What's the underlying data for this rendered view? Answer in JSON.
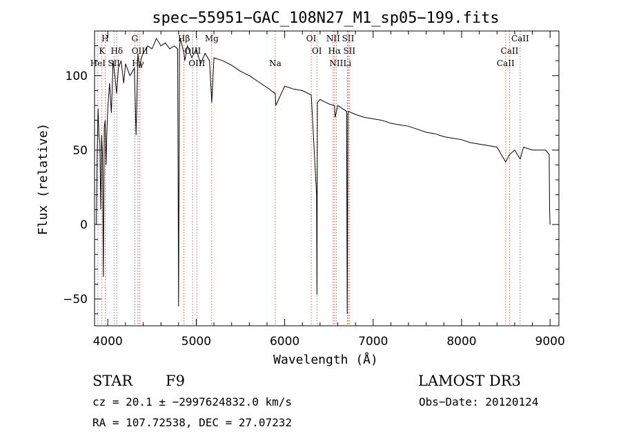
{
  "chart_data": {
    "type": "line",
    "title": "spec−55951−GAC_108N27_M1_sp05−199.fits",
    "xlabel": "Wavelength (Å)",
    "ylabel": "Flux (relative)",
    "xlim": [
      3850,
      9100
    ],
    "ylim": [
      -68,
      130
    ],
    "xticks": [
      4000,
      5000,
      6000,
      7000,
      8000,
      9000
    ],
    "yticks": [
      -50,
      0,
      50,
      100
    ],
    "ytick_labels": [
      "−50",
      "0",
      "50",
      "100"
    ],
    "series": [
      {
        "name": "flux",
        "x": [
          3870,
          3880,
          3890,
          3900,
          3910,
          3920,
          3930,
          3940,
          3950,
          3960,
          3970,
          3980,
          3990,
          4000,
          4020,
          4040,
          4060,
          4080,
          4100,
          4120,
          4150,
          4180,
          4200,
          4250,
          4300,
          4320,
          4340,
          4360,
          4380,
          4400,
          4450,
          4500,
          4550,
          4600,
          4650,
          4700,
          4750,
          4790,
          4800,
          4810,
          4820,
          4861,
          4870,
          4900,
          4950,
          5000,
          5050,
          5100,
          5150,
          5175,
          5200,
          5300,
          5400,
          5500,
          5600,
          5700,
          5800,
          5893,
          5900,
          6000,
          6100,
          6200,
          6300,
          6360,
          6365,
          6370,
          6400,
          6500,
          6563,
          6570,
          6600,
          6650,
          6700,
          6707,
          6715,
          6720,
          6800,
          6900,
          7000,
          7100,
          7200,
          7300,
          7400,
          7500,
          7600,
          7700,
          7800,
          7900,
          8000,
          8100,
          8200,
          8300,
          8400,
          8498,
          8542,
          8600,
          8662,
          8700,
          8800,
          8900,
          8950,
          8990,
          8995,
          9000
        ],
        "y": [
          0,
          45,
          78,
          60,
          55,
          10,
          60,
          48,
          -35,
          65,
          70,
          40,
          62,
          78,
          95,
          75,
          110,
          100,
          88,
          105,
          110,
          95,
          108,
          100,
          105,
          60,
          115,
          105,
          112,
          115,
          120,
          118,
          125,
          120,
          122,
          118,
          120,
          118,
          -55,
          118,
          125,
          115,
          110,
          120,
          112,
          118,
          108,
          115,
          110,
          82,
          112,
          110,
          107,
          103,
          100,
          96,
          92,
          88,
          80,
          93,
          91,
          90,
          87,
          20,
          -47,
          82,
          84,
          81,
          80,
          72,
          80,
          78,
          76,
          -60,
          74,
          76,
          74,
          72,
          71,
          70,
          68,
          67,
          66,
          64,
          62,
          61,
          59,
          58,
          57,
          55,
          54,
          53,
          52,
          42,
          47,
          50,
          44,
          52,
          50,
          50,
          50,
          47,
          10,
          0
        ]
      }
    ],
    "lines": [
      {
        "label": "H",
        "wl": 3970,
        "row": 0
      },
      {
        "label": "K",
        "wl": 3934,
        "row": 1
      },
      {
        "label": "Hδ",
        "wl": 4102,
        "row": 1
      },
      {
        "label": "HeI",
        "wl": 3888,
        "row": 2
      },
      {
        "label": "SII",
        "wl": 4070,
        "row": 2
      },
      {
        "label": "G",
        "wl": 4305,
        "row": 0
      },
      {
        "label": "OIII",
        "wl": 4363,
        "row": 1
      },
      {
        "label": "Hγ",
        "wl": 4341,
        "row": 2
      },
      {
        "label": "Hβ",
        "wl": 4861,
        "row": 0
      },
      {
        "label": "OIII",
        "wl": 4959,
        "row": 1
      },
      {
        "label": "OIII",
        "wl": 5007,
        "row": 2
      },
      {
        "label": "Mg",
        "wl": 5175,
        "row": 0
      },
      {
        "label": "Na",
        "wl": 5893,
        "row": 2
      },
      {
        "label": "OI",
        "wl": 6300,
        "row": 0
      },
      {
        "label": "OI",
        "wl": 6364,
        "row": 1
      },
      {
        "label": "NII",
        "wl": 6548,
        "row": 0
      },
      {
        "label": "Hα",
        "wl": 6563,
        "row": 1
      },
      {
        "label": "NII",
        "wl": 6583,
        "row": 2
      },
      {
        "label": "SII",
        "wl": 6717,
        "row": 0
      },
      {
        "label": "SII",
        "wl": 6731,
        "row": 1
      },
      {
        "label": "Li",
        "wl": 6708,
        "row": 2
      },
      {
        "label": "CaII",
        "wl": 8662,
        "row": 0
      },
      {
        "label": "CaII",
        "wl": 8542,
        "row": 1
      },
      {
        "label": "CaII",
        "wl": 8498,
        "row": 2
      }
    ]
  },
  "info": {
    "class": "STAR",
    "subclass": "F9",
    "survey": "LAMOST DR3",
    "cz": "cz = 20.1 ± −2997624832.0 km/s",
    "obsdate": "Obs−Date: 20120124",
    "radec": "RA = 107.72538, DEC =  27.07232"
  },
  "colors": {
    "line_marker": "#c0392b",
    "spectrum": "#000000"
  }
}
